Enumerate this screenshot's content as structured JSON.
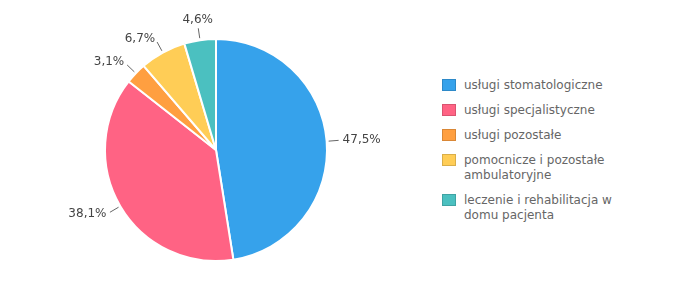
{
  "chart_data": {
    "type": "pie",
    "categories": [
      "usługi stomatologiczne",
      "usługi specjalistyczne",
      "usługi pozostałe",
      "pomocnicze i pozostałe\nambulatoryjne",
      "leczenie i rehabilitacja w\ndomu pacjenta"
    ],
    "values": [
      47.5,
      38.1,
      3.1,
      6.7,
      4.6
    ],
    "value_labels": [
      "47,5%",
      "38,1%",
      "3,1%",
      "6,7%",
      "4,6%"
    ],
    "data_labels": true,
    "legend": "right"
  }
}
